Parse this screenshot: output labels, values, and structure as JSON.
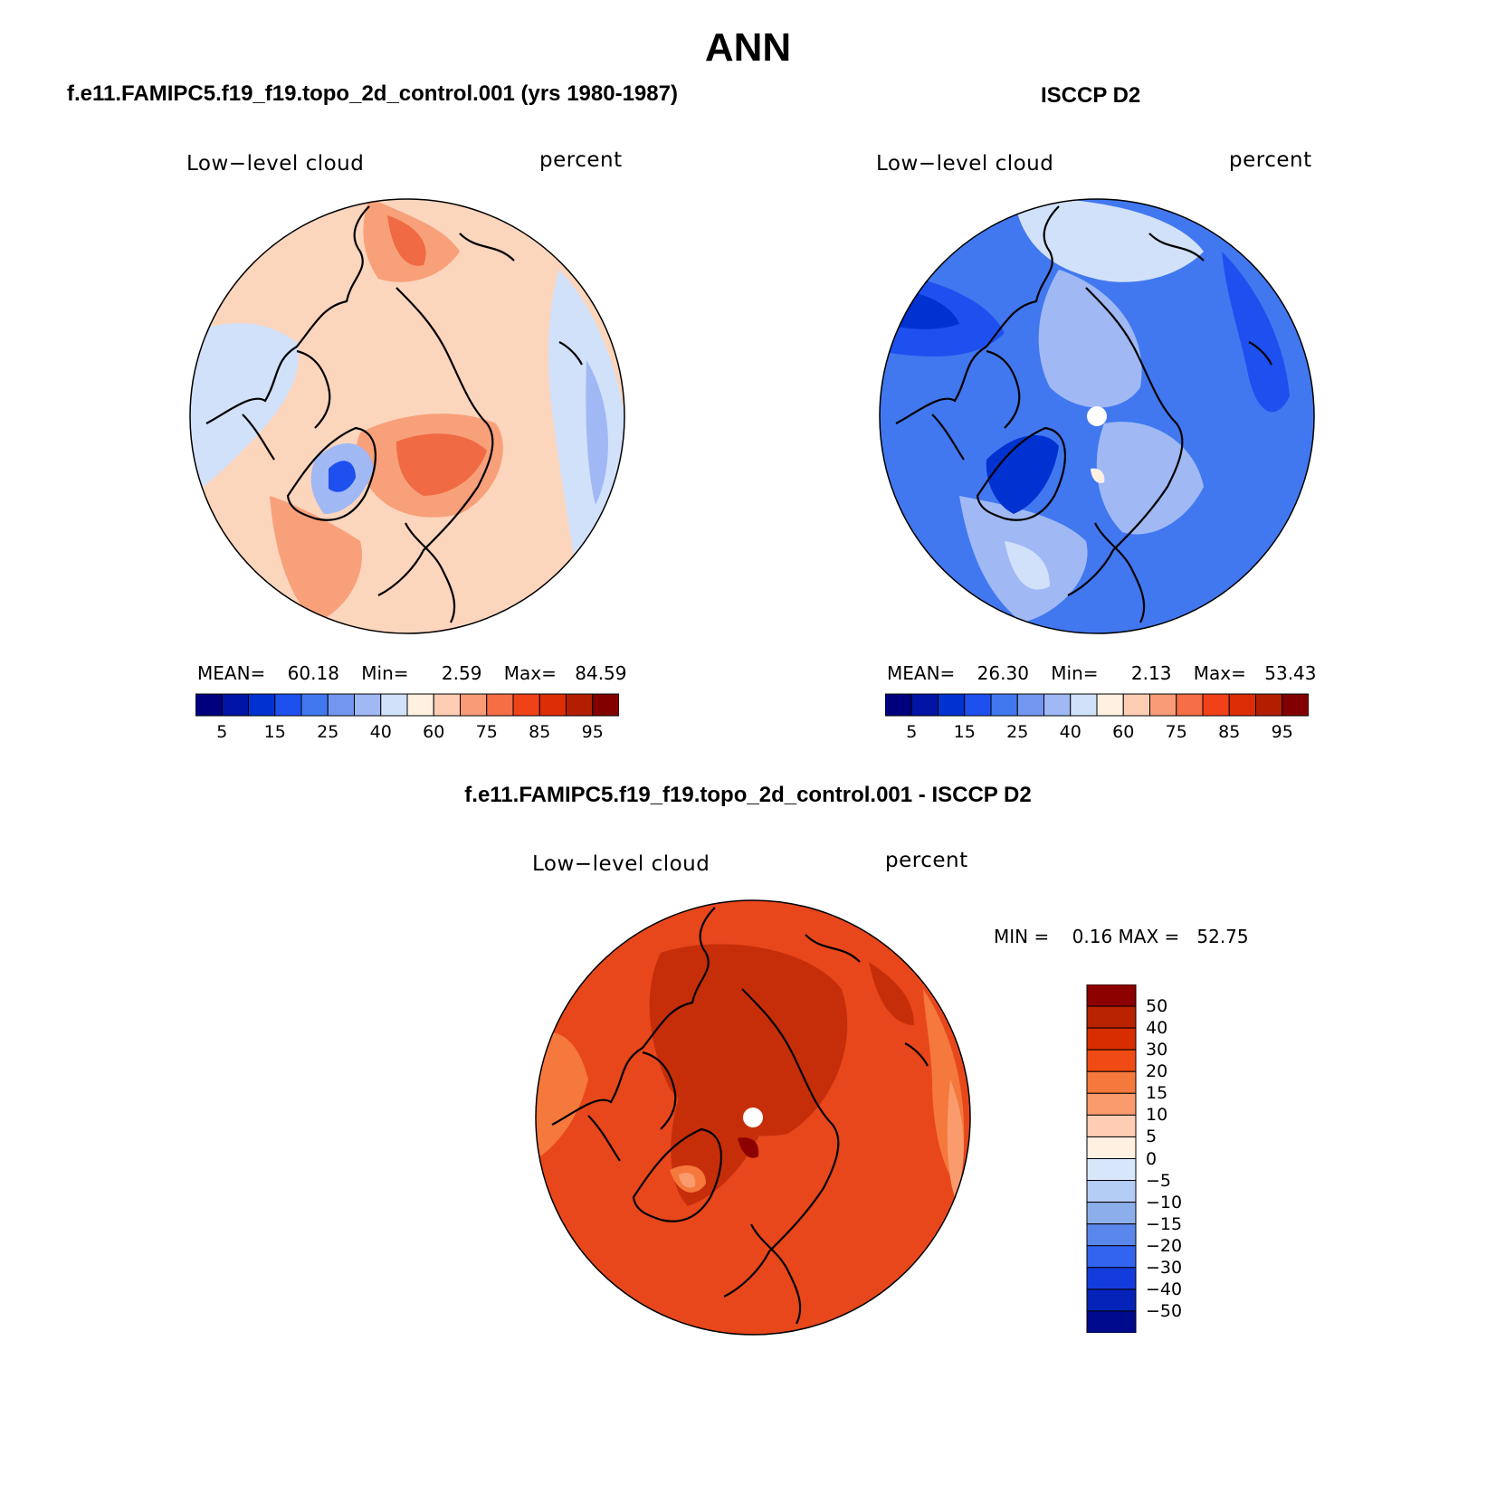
{
  "title": "ANN",
  "panels": {
    "left": {
      "title": "f.e11.FAMIPC5.f19_f19.topo_2d_control.001 (yrs 1980-1987)",
      "variable": "Low−level cloud",
      "units": "percent",
      "stats": {
        "mean_label": "MEAN=",
        "mean": "60.18",
        "min_label": "Min=",
        "min": "2.59",
        "max_label": "Max=",
        "max": "84.59"
      }
    },
    "right": {
      "title": "ISCCP D2",
      "variable": "Low−level cloud",
      "units": "percent",
      "stats": {
        "mean_label": "MEAN=",
        "mean": "26.30",
        "min_label": "Min=",
        "min": "2.13",
        "max_label": "Max=",
        "max": "53.43"
      }
    },
    "diff": {
      "title": "f.e11.FAMIPC5.f19_f19.topo_2d_control.001 - ISCCP D2",
      "variable": "Low−level cloud",
      "units": "percent",
      "minmax_text": "MIN =    0.16 MAX =   52.75"
    }
  },
  "colorbar_abs": {
    "colors": [
      "#00007f",
      "#0014a5",
      "#0032d2",
      "#1e50f0",
      "#4178f0",
      "#7396f0",
      "#a0b9f5",
      "#d2e1fa",
      "#fff0e1",
      "#ffcdb4",
      "#fa9b78",
      "#f56e46",
      "#f04119",
      "#dc2d05",
      "#b41e00",
      "#820000"
    ],
    "tick_labels": [
      "5",
      "15",
      "25",
      "40",
      "60",
      "75",
      "85",
      "95"
    ]
  },
  "colorbar_diff": {
    "colors_top_to_bottom": [
      "#8c0000",
      "#b92300",
      "#d72d00",
      "#f04b14",
      "#f5783c",
      "#fa9b6e",
      "#ffcdb4",
      "#fff0e1",
      "#d7e6fa",
      "#b4cdf5",
      "#8cafeb",
      "#5a87eb",
      "#3264f0",
      "#143cdc",
      "#0523b9",
      "#000a8c"
    ],
    "tick_labels": [
      "50",
      "40",
      "30",
      "20",
      "15",
      "10",
      "5",
      "0",
      "−5",
      "−10",
      "−15",
      "−20",
      "−30",
      "−40",
      "−50"
    ]
  },
  "map_colors": {
    "left": {
      "base": "#fcd5bd",
      "ocean_blue": "#d2e1fa",
      "mid_blue": "#a0b9f5",
      "orange": "#f8a07a",
      "red": "#f06a44",
      "dark_blue": "#1e50f0"
    },
    "right": {
      "base": "#4178f0",
      "light": "#a0b9f5",
      "pale": "#d2e1fa",
      "deep": "#1e50f0",
      "dark": "#0032d2",
      "peach": "#fff0e1"
    },
    "diff": {
      "base": "#e8471c",
      "dark": "#c62e0a",
      "red": "#dc2d05",
      "light": "#f5783c",
      "pale": "#fa9b6e",
      "deepest": "#8c0000"
    }
  }
}
